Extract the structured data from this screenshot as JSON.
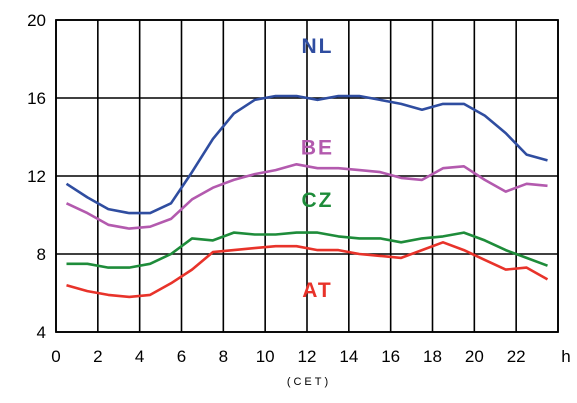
{
  "chart_data": {
    "type": "line",
    "xlabel": "(CET)",
    "x_unit_label": "h",
    "xlim": [
      0,
      24
    ],
    "ylim": [
      4,
      20
    ],
    "x_ticks": [
      0,
      2,
      4,
      6,
      8,
      10,
      12,
      14,
      16,
      18,
      20,
      22
    ],
    "y_ticks": [
      4,
      8,
      12,
      16,
      20
    ],
    "grid": true,
    "x": [
      0.5,
      1.5,
      2.5,
      3.5,
      4.5,
      5.5,
      6.5,
      7.5,
      8.5,
      9.5,
      10.5,
      11.5,
      12.5,
      13.5,
      14.5,
      15.5,
      16.5,
      17.5,
      18.5,
      19.5,
      20.5,
      21.5,
      22.5,
      23.5
    ],
    "series": [
      {
        "name": "NL",
        "color": "#2f4da0",
        "label_at": [
          12.5,
          18.3
        ],
        "values": [
          11.6,
          10.9,
          10.3,
          10.1,
          10.1,
          10.6,
          12.2,
          13.9,
          15.2,
          15.9,
          16.1,
          16.1,
          15.9,
          16.1,
          16.1,
          15.9,
          15.7,
          15.4,
          15.7,
          15.7,
          15.1,
          14.2,
          13.1,
          12.8
        ]
      },
      {
        "name": "BE",
        "color": "#b35aae",
        "label_at": [
          12.5,
          13.1
        ],
        "values": [
          10.6,
          10.1,
          9.5,
          9.3,
          9.4,
          9.8,
          10.8,
          11.4,
          11.8,
          12.1,
          12.3,
          12.6,
          12.4,
          12.4,
          12.3,
          12.2,
          11.9,
          11.8,
          12.4,
          12.5,
          11.8,
          11.2,
          11.6,
          11.5
        ]
      },
      {
        "name": "CZ",
        "color": "#1e8c3a",
        "label_at": [
          12.5,
          10.4
        ],
        "values": [
          7.5,
          7.5,
          7.3,
          7.3,
          7.5,
          8.0,
          8.8,
          8.7,
          9.1,
          9.0,
          9.0,
          9.1,
          9.1,
          8.9,
          8.8,
          8.8,
          8.6,
          8.8,
          8.9,
          9.1,
          8.7,
          8.2,
          7.8,
          7.4
        ]
      },
      {
        "name": "AT",
        "color": "#e8332a",
        "label_at": [
          12.5,
          5.8
        ],
        "values": [
          6.4,
          6.1,
          5.9,
          5.8,
          5.9,
          6.5,
          7.2,
          8.1,
          8.2,
          8.3,
          8.4,
          8.4,
          8.2,
          8.2,
          8.0,
          7.9,
          7.8,
          8.2,
          8.6,
          8.2,
          7.7,
          7.2,
          7.3,
          6.7
        ]
      }
    ]
  }
}
